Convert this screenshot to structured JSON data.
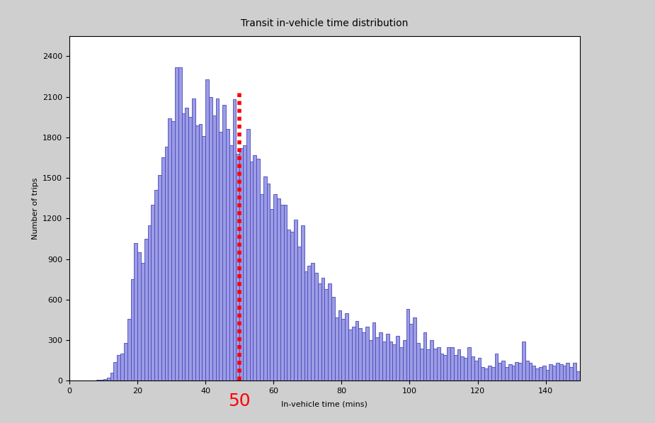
{
  "chart_data": {
    "type": "histogram",
    "title": "Transit in-vehicle time distribution",
    "x_label": "In-vehicle time (mins)",
    "y_label": "Number of trips",
    "bins": [
      0,
      1,
      2,
      3,
      4,
      5,
      6,
      7,
      8,
      9,
      10,
      11,
      12,
      13,
      14,
      15,
      16,
      17,
      18,
      19,
      20,
      21,
      22,
      23,
      24,
      25,
      26,
      27,
      28,
      29,
      30,
      31,
      32,
      33,
      34,
      35,
      36,
      37,
      38,
      39,
      40,
      41,
      42,
      43,
      44,
      45,
      46,
      47,
      48,
      49,
      50,
      51,
      52,
      53,
      54,
      55,
      56,
      57,
      58,
      59,
      60,
      61,
      62,
      63,
      64,
      65,
      66,
      67,
      68,
      69,
      70,
      71,
      72,
      73,
      74,
      75,
      76,
      77,
      78,
      79,
      80,
      81,
      82,
      83,
      84,
      85,
      86,
      87,
      88,
      89,
      90,
      91,
      92,
      93,
      94,
      95,
      96,
      97,
      98,
      99,
      100,
      101,
      102,
      103,
      104,
      105,
      106,
      107,
      108,
      109,
      110,
      111,
      112,
      113,
      114,
      115,
      116,
      117,
      118,
      119,
      120,
      121,
      122,
      123,
      124,
      125,
      126,
      127,
      128,
      129,
      130,
      131,
      132,
      133,
      134,
      135,
      136,
      137,
      138,
      139,
      140,
      141,
      142,
      143,
      144,
      145,
      146,
      147,
      148,
      149,
      150
    ],
    "values": [
      0,
      0,
      0,
      0,
      0,
      0,
      0,
      0,
      5,
      5,
      10,
      20,
      60,
      140,
      190,
      200,
      280,
      460,
      750,
      1020,
      950,
      870,
      1050,
      1150,
      1300,
      1410,
      1520,
      1650,
      1730,
      1940,
      1920,
      2320,
      2320,
      1980,
      2020,
      1950,
      2090,
      1890,
      1900,
      1810,
      2230,
      2100,
      1960,
      2090,
      1840,
      2040,
      1860,
      1740,
      2080,
      1680,
      1720,
      1740,
      1860,
      1620,
      1670,
      1640,
      1380,
      1510,
      1460,
      1270,
      1380,
      1350,
      1300,
      1300,
      1120,
      1100,
      1190,
      990,
      1150,
      810,
      850,
      870,
      800,
      720,
      760,
      680,
      720,
      620,
      470,
      520,
      460,
      500,
      380,
      400,
      440,
      390,
      360,
      400,
      300,
      430,
      320,
      360,
      290,
      350,
      290,
      270,
      330,
      250,
      300,
      530,
      420,
      470,
      280,
      240,
      360,
      230,
      300,
      240,
      250,
      200,
      190,
      250,
      250,
      190,
      230,
      180,
      170,
      250,
      180,
      150,
      170,
      100,
      90,
      110,
      100,
      200,
      130,
      150,
      100,
      120,
      110,
      140,
      130,
      290,
      150,
      130,
      110,
      90,
      100,
      110,
      80,
      120,
      110,
      130,
      120,
      110,
      130,
      100,
      130,
      70
    ],
    "color": "#9c9ce6",
    "xlim": [
      0,
      150
    ],
    "xticks": [
      0,
      20,
      40,
      60,
      80,
      100,
      120,
      140
    ],
    "ylim": [
      0,
      2550
    ],
    "yticks": [
      0,
      300,
      600,
      900,
      1200,
      1500,
      1800,
      2100,
      2400
    ],
    "grid": false,
    "annotations": [
      {
        "x": 50,
        "text": "50",
        "color": "#ff0000"
      }
    ]
  }
}
